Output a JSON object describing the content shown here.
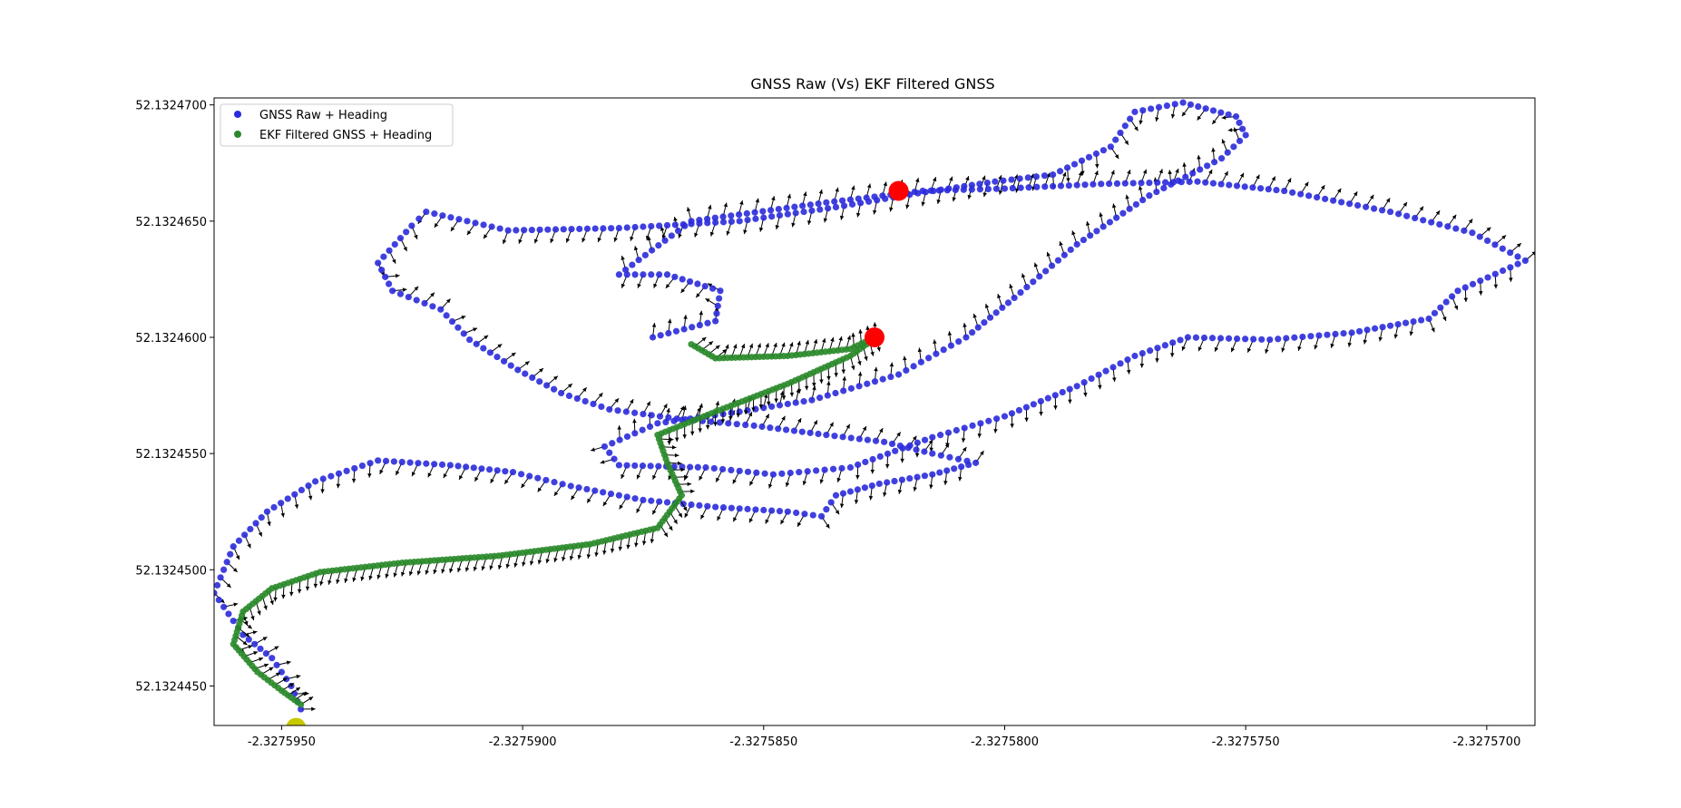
{
  "chart_data": {
    "type": "scatter",
    "title": "GNSS Raw (Vs) EKF Filtered GNSS",
    "xlabel": "",
    "ylabel": "",
    "xlim": [
      -2.3275964,
      -2.327569
    ],
    "ylim": [
      52.1324433,
      52.1324703
    ],
    "x_ticks": [
      -2.327595,
      -2.32759,
      -2.327585,
      -2.32758,
      -2.327575,
      -2.32757
    ],
    "x_tick_labels": [
      "-2.3275950",
      "-2.3275900",
      "-2.3275850",
      "-2.3275800",
      "-2.3275750",
      "-2.3275700"
    ],
    "y_ticks": [
      52.132445,
      52.13245,
      52.132455,
      52.13246,
      52.132465,
      52.13247
    ],
    "y_tick_labels": [
      "52.1324450",
      "52.1324500",
      "52.1324550",
      "52.1324600",
      "52.1324650",
      "52.1324700"
    ],
    "grid": false,
    "legend_position": "upper-left",
    "heading_arrow_color": "#000000",
    "series": [
      {
        "name": "GNSS Raw + Heading",
        "color": "#2b2bdc",
        "heading_arrows": true,
        "points": [
          [
            -2.3275946,
            52.132444
          ],
          [
            -2.3275948,
            52.132445
          ],
          [
            -2.3275952,
            52.1324462
          ],
          [
            -2.3275958,
            52.1324472
          ],
          [
            -2.3275964,
            52.132449
          ],
          [
            -2.327596,
            52.132451
          ],
          [
            -2.3275953,
            52.1324525
          ],
          [
            -2.3275943,
            52.1324538
          ],
          [
            -2.327593,
            52.1324547
          ],
          [
            -2.3275915,
            52.1324545
          ],
          [
            -2.3275902,
            52.1324542
          ],
          [
            -2.327589,
            52.1324536
          ],
          [
            -2.3275875,
            52.132453
          ],
          [
            -2.327586,
            52.1324527
          ],
          [
            -2.3275845,
            52.1324525
          ],
          [
            -2.3275838,
            52.1324523
          ],
          [
            -2.3275835,
            52.1324532
          ],
          [
            -2.3275826,
            52.1324537
          ],
          [
            -2.3275815,
            52.1324541
          ],
          [
            -2.3275806,
            52.1324546
          ],
          [
            -2.3275815,
            52.132455
          ],
          [
            -2.3275825,
            52.1324555
          ],
          [
            -2.3275837,
            52.1324558
          ],
          [
            -2.3275852,
            52.1324562
          ],
          [
            -2.3275868,
            52.1324565
          ],
          [
            -2.3275882,
            52.1324569
          ],
          [
            -2.3275892,
            52.1324576
          ],
          [
            -2.3275901,
            52.1324586
          ],
          [
            -2.3275911,
            52.1324599
          ],
          [
            -2.3275917,
            52.1324612
          ],
          [
            -2.3275927,
            52.132462
          ],
          [
            -2.327593,
            52.1324632
          ],
          [
            -2.3275923,
            52.1324648
          ],
          [
            -2.327592,
            52.1324654
          ],
          [
            -2.3275903,
            52.1324646
          ],
          [
            -2.327588,
            52.1324647
          ],
          [
            -2.3275855,
            52.132465
          ],
          [
            -2.3275835,
            52.1324656
          ],
          [
            -2.3275818,
            52.1324662
          ],
          [
            -2.3275802,
            52.1324667
          ],
          [
            -2.327579,
            52.132467
          ],
          [
            -2.3275778,
            52.1324682
          ],
          [
            -2.3275773,
            52.1324697
          ],
          [
            -2.3275763,
            52.1324701
          ],
          [
            -2.3275752,
            52.1324695
          ],
          [
            -2.327575,
            52.1324687
          ],
          [
            -2.3275755,
            52.1324677
          ],
          [
            -2.327577,
            52.1324661
          ],
          [
            -2.3275785,
            52.132464
          ],
          [
            -2.3275798,
            52.1324617
          ],
          [
            -2.3275808,
            52.13246
          ],
          [
            -2.3275822,
            52.1324584
          ],
          [
            -2.327584,
            52.1324573
          ],
          [
            -2.3275855,
            52.1324568
          ],
          [
            -2.3275872,
            52.1324563
          ],
          [
            -2.3275883,
            52.1324553
          ],
          [
            -2.327588,
            52.1324545
          ],
          [
            -2.3275862,
            52.1324544
          ],
          [
            -2.3275848,
            52.1324541
          ],
          [
            -2.3275832,
            52.1324544
          ],
          [
            -2.3275815,
            52.1324557
          ],
          [
            -2.32758,
            52.1324566
          ],
          [
            -2.3275785,
            52.1324579
          ],
          [
            -2.3275773,
            52.1324592
          ],
          [
            -2.3275762,
            52.13246
          ],
          [
            -2.3275745,
            52.1324599
          ],
          [
            -2.3275728,
            52.1324602
          ],
          [
            -2.3275712,
            52.1324608
          ],
          [
            -2.3275706,
            52.132462
          ],
          [
            -2.3275692,
            52.1324633
          ],
          [
            -2.3275703,
            52.1324645
          ],
          [
            -2.327572,
            52.1324654
          ],
          [
            -2.3275742,
            52.1324663
          ],
          [
            -2.327576,
            52.1324667
          ],
          [
            -2.327578,
            52.1324666
          ],
          [
            -2.32758,
            52.1324664
          ],
          [
            -2.3275817,
            52.1324663
          ],
          [
            -2.3275837,
            52.1324658
          ],
          [
            -2.3275865,
            52.132465
          ],
          [
            -2.327588,
            52.1324627
          ],
          [
            -2.327587,
            52.1324627
          ],
          [
            -2.3275859,
            52.132462
          ],
          [
            -2.327586,
            52.1324607
          ],
          [
            -2.3275873,
            52.13246
          ]
        ]
      },
      {
        "name": "EKF Filtered GNSS + Heading",
        "color": "#2a8a2a",
        "heading_arrows": true,
        "points": [
          [
            -2.3275946,
            52.1324442
          ],
          [
            -2.327595,
            52.1324448
          ],
          [
            -2.3275955,
            52.1324456
          ],
          [
            -2.327596,
            52.1324468
          ],
          [
            -2.3275958,
            52.1324482
          ],
          [
            -2.3275952,
            52.1324492
          ],
          [
            -2.3275942,
            52.1324499
          ],
          [
            -2.3275925,
            52.1324503
          ],
          [
            -2.3275905,
            52.1324506
          ],
          [
            -2.3275886,
            52.1324511
          ],
          [
            -2.3275872,
            52.1324518
          ],
          [
            -2.3275867,
            52.1324532
          ],
          [
            -2.327587,
            52.1324546
          ],
          [
            -2.3275872,
            52.1324558
          ],
          [
            -2.327586,
            52.1324568
          ],
          [
            -2.3275845,
            52.132458
          ],
          [
            -2.3275832,
            52.1324592
          ],
          [
            -2.3275826,
            52.1324601
          ],
          [
            -2.3275832,
            52.1324595
          ],
          [
            -2.3275845,
            52.1324592
          ],
          [
            -2.327586,
            52.1324591
          ],
          [
            -2.3275865,
            52.1324597
          ]
        ]
      },
      {
        "name": "",
        "color": "#ff0000",
        "heading_arrows": false,
        "marker": "large-circle",
        "points": [
          [
            -2.3275822,
            52.1324663
          ],
          [
            -2.3275827,
            52.13246
          ]
        ]
      },
      {
        "name": "",
        "color": "#c8c800",
        "heading_arrows": false,
        "marker": "large-circle",
        "points": [
          [
            -2.3275947,
            52.1324432
          ]
        ]
      }
    ]
  }
}
